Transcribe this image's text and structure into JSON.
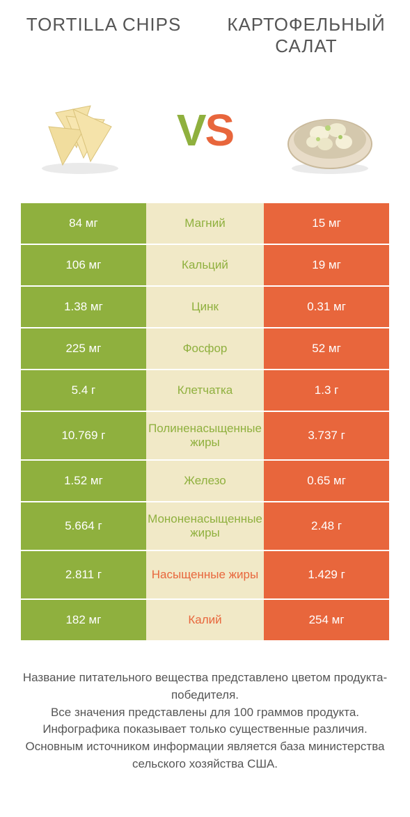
{
  "colors": {
    "green": "#8fb03e",
    "orange": "#e8663c",
    "mid_bg": "#f1e9c7",
    "text_gray": "#555555",
    "white": "#ffffff"
  },
  "header": {
    "left_title": "Tortilla chips",
    "right_title": "Картофельный салат"
  },
  "vs": {
    "v": "V",
    "s": "S"
  },
  "rows": [
    {
      "left": "84 мг",
      "label": "Магний",
      "right": "15 мг",
      "winner": "left",
      "tall": false
    },
    {
      "left": "106 мг",
      "label": "Кальций",
      "right": "19 мг",
      "winner": "left",
      "tall": false
    },
    {
      "left": "1.38 мг",
      "label": "Цинк",
      "right": "0.31 мг",
      "winner": "left",
      "tall": false
    },
    {
      "left": "225 мг",
      "label": "Фосфор",
      "right": "52 мг",
      "winner": "left",
      "tall": false
    },
    {
      "left": "5.4 г",
      "label": "Клетчатка",
      "right": "1.3 г",
      "winner": "left",
      "tall": false
    },
    {
      "left": "10.769 г",
      "label": "Полиненасыщенные жиры",
      "right": "3.737 г",
      "winner": "left",
      "tall": true
    },
    {
      "left": "1.52 мг",
      "label": "Железо",
      "right": "0.65 мг",
      "winner": "left",
      "tall": false
    },
    {
      "left": "5.664 г",
      "label": "Мононенасыщенные жиры",
      "right": "2.48 г",
      "winner": "left",
      "tall": true
    },
    {
      "left": "2.811 г",
      "label": "Насыщенные жиры",
      "right": "1.429 г",
      "winner": "right",
      "tall": true
    },
    {
      "left": "182 мг",
      "label": "Калий",
      "right": "254 мг",
      "winner": "right",
      "tall": false
    }
  ],
  "footer": {
    "line1": "Название питательного вещества представлено цветом продукта-победителя.",
    "line2": "Все значения представлены для 100 граммов продукта.",
    "line3": "Инфографика показывает только существенные различия.",
    "line4": "Основным источником информации является база министерства сельского хозяйства США."
  }
}
